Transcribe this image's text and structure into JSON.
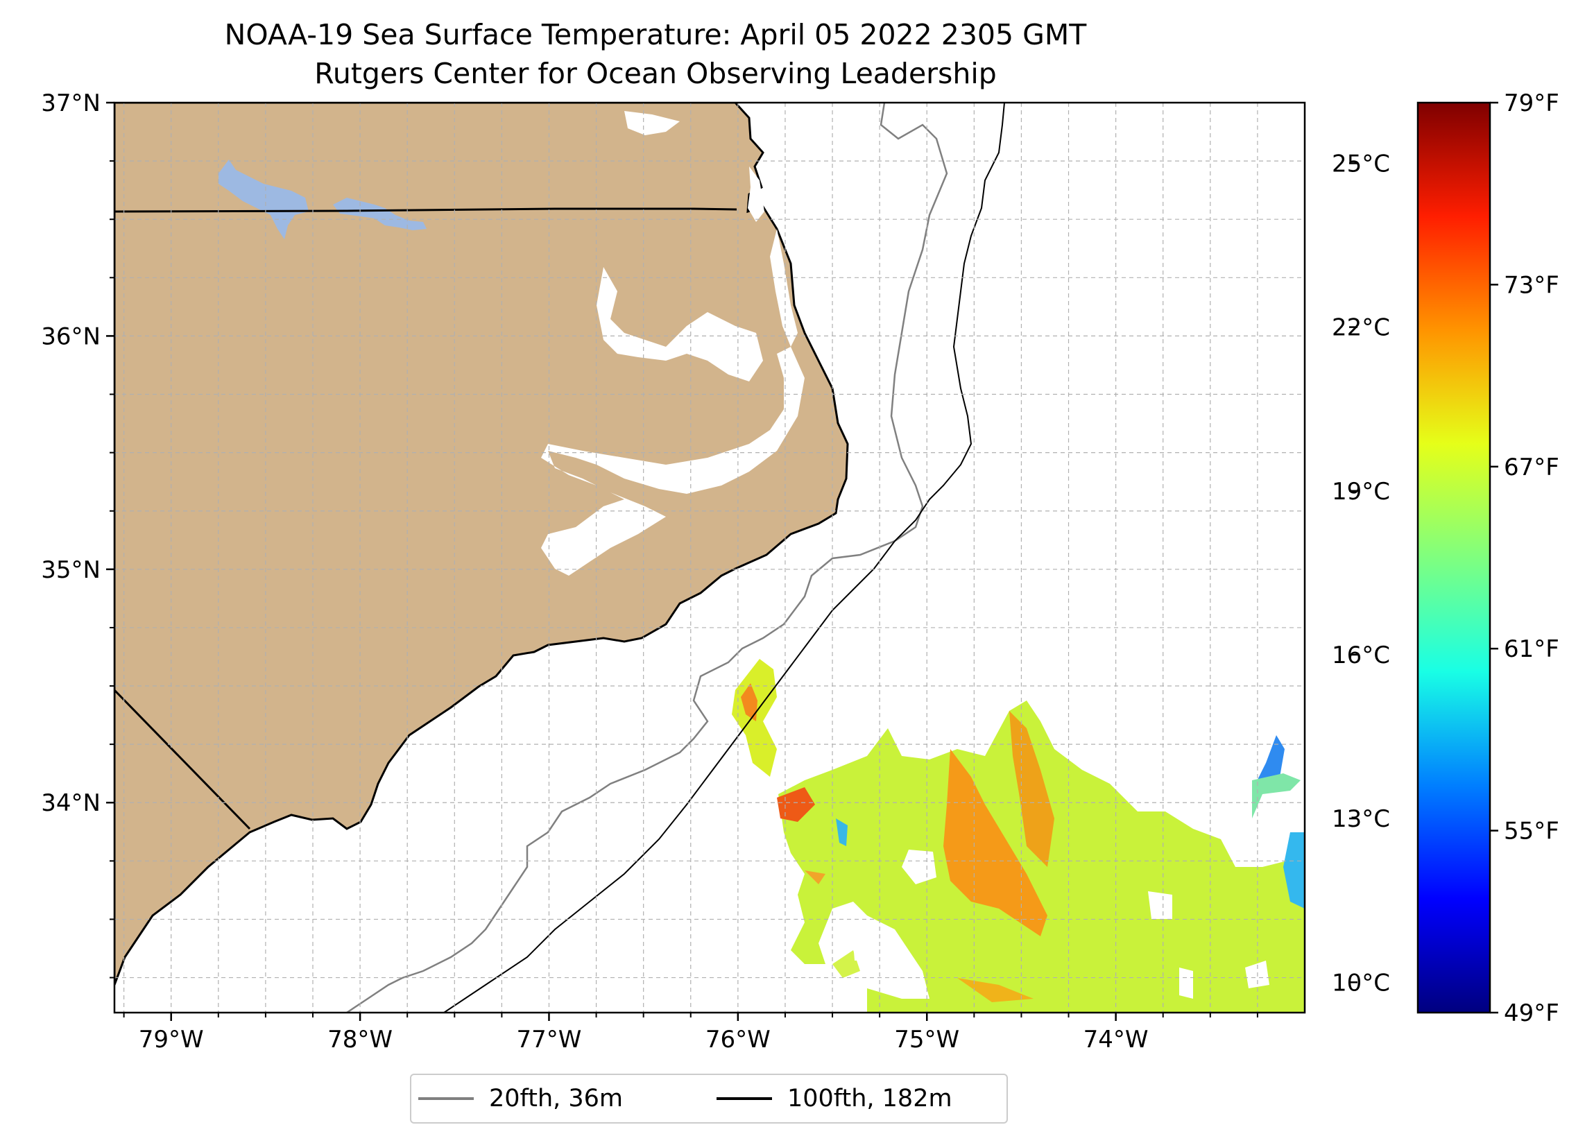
{
  "title": {
    "line1": "NOAA-19 Sea Surface Temperature: April 05 2022 2305 GMT",
    "line2": "Rutgers Center for Ocean Observing Leadership"
  },
  "map": {
    "lon_range": [
      -79.3,
      -73.0
    ],
    "lat_range": [
      33.1,
      37.0
    ],
    "lon_ticks": [
      "79°W",
      "78°W",
      "77°W",
      "76°W",
      "75°W",
      "74°W"
    ],
    "lat_ticks": [
      "37°N",
      "36°N",
      "35°N",
      "34°N"
    ],
    "land_color": "#d2b48c",
    "lake_color": "#9db9e2",
    "gridlines": true
  },
  "legend": {
    "items": [
      {
        "label": "20fth, 36m",
        "color": "#808080"
      },
      {
        "label": "100fth, 182m",
        "color": "#000000"
      }
    ]
  },
  "colorbar": {
    "colormap": "jet",
    "range_f": [
      49,
      79
    ],
    "celsius_ticks": [
      "25°C",
      "22°C",
      "19°C",
      "16°C",
      "13°C",
      "10°C"
    ],
    "fahrenheit_ticks": [
      "79°F",
      "73°F",
      "67°F",
      "61°F",
      "55°F",
      "49°F"
    ],
    "colors": [
      "#00007f",
      "#0000ff",
      "#007fff",
      "#19ffe5",
      "#7fff7f",
      "#e5ff19",
      "#ff9400",
      "#ff1e00",
      "#7f0000"
    ]
  }
}
